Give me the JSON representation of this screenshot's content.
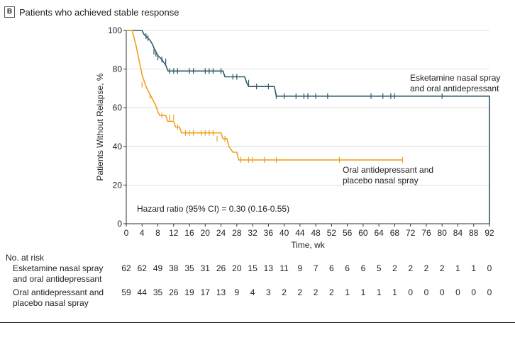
{
  "panel": {
    "letter": "B",
    "title": "Patients who achieved stable response"
  },
  "chart_data": {
    "type": "line",
    "subtype": "kaplan-meier",
    "xlabel": "Time, wk",
    "ylabel": "Patients Without Relapse, %",
    "xlim": [
      0,
      92
    ],
    "ylim": [
      0,
      100
    ],
    "xticks": [
      0,
      4,
      8,
      12,
      16,
      20,
      24,
      28,
      32,
      36,
      40,
      44,
      48,
      52,
      56,
      60,
      64,
      68,
      72,
      76,
      80,
      84,
      88,
      92
    ],
    "yticks": [
      0,
      20,
      40,
      60,
      80,
      100
    ],
    "grid": true,
    "annotation": "Hazard ratio (95% CI) = 0.30 (0.16-0.55)",
    "series": [
      {
        "name": "Esketamine nasal spray and oral antidepressant",
        "label_lines": [
          "Esketamine nasal spray",
          "and oral antidepressant"
        ],
        "color": "#2e5a68",
        "steps": [
          [
            0,
            100
          ],
          [
            4,
            100
          ],
          [
            4.5,
            98
          ],
          [
            5,
            97
          ],
          [
            5.5,
            96
          ],
          [
            6,
            95
          ],
          [
            6.6,
            93
          ],
          [
            7,
            91
          ],
          [
            7.5,
            89
          ],
          [
            8,
            87
          ],
          [
            8.5,
            86
          ],
          [
            9,
            85
          ],
          [
            10,
            82
          ],
          [
            10.6,
            79
          ],
          [
            24.5,
            79
          ],
          [
            25,
            76
          ],
          [
            30,
            76
          ],
          [
            30.5,
            73
          ],
          [
            31,
            71
          ],
          [
            37.5,
            71
          ],
          [
            38,
            66
          ],
          [
            92,
            66
          ],
          [
            92,
            0
          ]
        ],
        "censors": [
          [
            5,
            97
          ],
          [
            5.5,
            96
          ],
          [
            7,
            89
          ],
          [
            7.5,
            88
          ],
          [
            8,
            86
          ],
          [
            9,
            85
          ],
          [
            10,
            84
          ],
          [
            11,
            79
          ],
          [
            12,
            79
          ],
          [
            13,
            79
          ],
          [
            16,
            79
          ],
          [
            17,
            79
          ],
          [
            20,
            79
          ],
          [
            21,
            79
          ],
          [
            22,
            79
          ],
          [
            24,
            79
          ],
          [
            27,
            76
          ],
          [
            28,
            76
          ],
          [
            31,
            73
          ],
          [
            33,
            71
          ],
          [
            36,
            71
          ],
          [
            38,
            66
          ],
          [
            40,
            66
          ],
          [
            43,
            66
          ],
          [
            45,
            66
          ],
          [
            46,
            66
          ],
          [
            48,
            66
          ],
          [
            51,
            66
          ],
          [
            62,
            66
          ],
          [
            65,
            66
          ],
          [
            67,
            66
          ],
          [
            68,
            66
          ],
          [
            80,
            66
          ]
        ]
      },
      {
        "name": "Oral antidepressant and placebo nasal spray",
        "label_lines": [
          "Oral antidepressant and",
          "placebo nasal spray"
        ],
        "color": "#f0a020",
        "steps": [
          [
            0,
            100
          ],
          [
            1.5,
            100
          ],
          [
            2,
            96
          ],
          [
            2.5,
            92
          ],
          [
            3,
            87
          ],
          [
            3.5,
            82
          ],
          [
            4,
            77
          ],
          [
            4.5,
            74
          ],
          [
            5,
            71
          ],
          [
            5.5,
            69
          ],
          [
            6,
            67
          ],
          [
            6.5,
            65
          ],
          [
            7,
            63
          ],
          [
            7.5,
            61
          ],
          [
            8,
            58
          ],
          [
            8.5,
            56
          ],
          [
            10,
            56
          ],
          [
            10.5,
            53
          ],
          [
            12,
            53
          ],
          [
            12.5,
            50
          ],
          [
            13.5,
            50
          ],
          [
            14,
            47
          ],
          [
            24,
            47
          ],
          [
            24.5,
            44
          ],
          [
            25.5,
            44
          ],
          [
            26,
            40
          ],
          [
            27,
            37
          ],
          [
            28,
            37
          ],
          [
            28.5,
            33
          ],
          [
            70,
            33
          ]
        ],
        "censors": [
          [
            4,
            72
          ],
          [
            6,
            66
          ],
          [
            9,
            56
          ],
          [
            11,
            55
          ],
          [
            12,
            55
          ],
          [
            13,
            50
          ],
          [
            15,
            47
          ],
          [
            16,
            47
          ],
          [
            17,
            47
          ],
          [
            19,
            47
          ],
          [
            20,
            47
          ],
          [
            21,
            47
          ],
          [
            22,
            47
          ],
          [
            23,
            44
          ],
          [
            25,
            44
          ],
          [
            29,
            33
          ],
          [
            31,
            33
          ],
          [
            32,
            33
          ],
          [
            35,
            33
          ],
          [
            38,
            33
          ],
          [
            54,
            33
          ],
          [
            70,
            33
          ]
        ]
      }
    ],
    "at_risk": {
      "title": "No. at risk",
      "times": [
        0,
        4,
        8,
        12,
        16,
        20,
        24,
        28,
        32,
        36,
        40,
        44,
        48,
        52,
        56,
        60,
        64,
        68,
        72,
        76,
        80,
        84,
        88,
        92
      ],
      "rows": [
        {
          "label_lines": [
            "Esketamine nasal spray",
            "and oral antidepressant"
          ],
          "counts": [
            "62",
            "62",
            "49",
            "38",
            "35",
            "31",
            "26",
            "20",
            "15",
            "13",
            "11",
            "9",
            "7",
            "6",
            "6",
            "6",
            "5",
            "2",
            "2",
            "2",
            "2",
            "1",
            "1",
            "0"
          ]
        },
        {
          "label_lines": [
            "Oral antidepressant and",
            "placebo nasal spray"
          ],
          "counts": [
            "59",
            "44",
            "35",
            "26",
            "19",
            "17",
            "13",
            "9",
            "4",
            "3",
            "2",
            "2",
            "2",
            "2",
            "1",
            "1",
            "1",
            "1",
            "0",
            "0",
            "0",
            "0",
            "0",
            "0"
          ]
        }
      ]
    }
  }
}
